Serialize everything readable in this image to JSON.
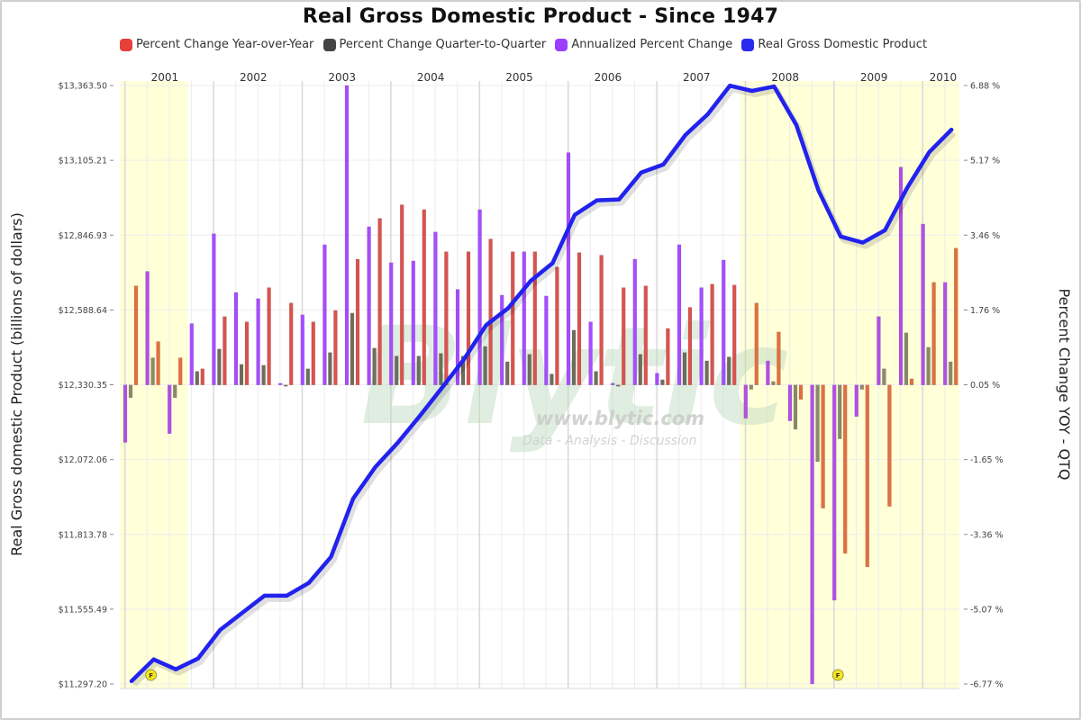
{
  "chart_data": {
    "type": "bar",
    "title": "Real Gross Domestic Product - Since 1947",
    "ylabel_left": "Real Gross domestic Product (billions of dollars)",
    "ylabel_right": "Percent Change YOY - QTQ",
    "ylim_left": [
      11297.2,
      13363.5
    ],
    "ylim_right": [
      -6.77,
      6.88
    ],
    "left_ticks": [
      "$13,363.50",
      "$13,105.21",
      "$12,846.93",
      "$12,588.64",
      "$12,330.35",
      "$12,072.06",
      "$11,813.78",
      "$11,555.49",
      "$11,297.20"
    ],
    "right_ticks": [
      "6.88 %",
      "5.17 %",
      "3.46 %",
      "1.76 %",
      "0.05 %",
      "-1.65 %",
      "-3.36 %",
      "-5.07 %",
      "-6.77 %"
    ],
    "years": [
      "2001",
      "2002",
      "2003",
      "2004",
      "2005",
      "2006",
      "2007",
      "2008",
      "2009",
      "2010"
    ],
    "recession_shading": [
      {
        "from_quarter": "2001Q1",
        "to_quarter": "2001Q3",
        "color": "#ffffd8"
      },
      {
        "from_quarter": "2008Q1",
        "to_quarter": "2010Q2",
        "color": "#ffffd8"
      }
    ],
    "markers": [
      {
        "quarter": "2001Q2",
        "glyph": "F"
      },
      {
        "quarter": "2009Q1",
        "glyph": "F"
      }
    ],
    "legend_position": "top",
    "grid": true,
    "quarters": [
      "2001Q1",
      "2001Q2",
      "2001Q3",
      "2001Q4",
      "2002Q1",
      "2002Q2",
      "2002Q3",
      "2002Q4",
      "2003Q1",
      "2003Q2",
      "2003Q3",
      "2003Q4",
      "2004Q1",
      "2004Q2",
      "2004Q3",
      "2004Q4",
      "2005Q1",
      "2005Q2",
      "2005Q3",
      "2005Q4",
      "2006Q1",
      "2006Q2",
      "2006Q3",
      "2006Q4",
      "2007Q1",
      "2007Q2",
      "2007Q3",
      "2007Q4",
      "2008Q1",
      "2008Q2",
      "2008Q3",
      "2008Q4",
      "2009Q1",
      "2009Q2",
      "2009Q3",
      "2009Q4",
      "2010Q1",
      "2010Q2"
    ],
    "series": [
      {
        "name": "Percent Change Year-over-Year",
        "axis": "right",
        "kind": "bar",
        "color": "#d9534f",
        "values": [
          2.31,
          1.04,
          0.67,
          0.42,
          1.61,
          1.49,
          2.27,
          1.92,
          1.49,
          1.75,
          2.92,
          3.85,
          4.16,
          4.05,
          3.09,
          3.09,
          3.38,
          3.09,
          3.09,
          2.74,
          3.07,
          3.01,
          2.27,
          2.31,
          1.34,
          1.82,
          2.35,
          2.33,
          1.92,
          1.26,
          -0.28,
          -2.76,
          -3.79,
          -4.1,
          -2.72,
          0.19,
          2.39,
          3.17
        ]
      },
      {
        "name": "Percent Change Quarter-to-Quarter",
        "axis": "right",
        "kind": "bar",
        "color": "#555555",
        "values": [
          -0.24,
          0.67,
          -0.24,
          0.36,
          0.87,
          0.52,
          0.5,
          0.05,
          0.42,
          0.79,
          1.69,
          0.89,
          0.71,
          0.71,
          0.77,
          0.71,
          0.93,
          0.58,
          0.75,
          0.3,
          1.3,
          0.36,
          0.05,
          0.75,
          0.17,
          0.79,
          0.6,
          0.69,
          -0.05,
          0.13,
          -0.96,
          -1.7,
          -1.18,
          -0.05,
          0.42,
          1.24,
          0.91,
          0.58
        ]
      },
      {
        "name": "Annualized Percent Change",
        "axis": "right",
        "kind": "bar",
        "color": "#a64dff",
        "values": [
          -1.26,
          2.64,
          -1.06,
          1.45,
          3.5,
          2.16,
          2.02,
          0.09,
          1.65,
          3.25,
          6.88,
          3.66,
          2.84,
          2.88,
          3.54,
          2.23,
          4.05,
          2.1,
          3.09,
          2.08,
          5.35,
          1.49,
          0.09,
          2.92,
          0.32,
          3.25,
          2.27,
          2.9,
          -0.71,
          0.6,
          -0.77,
          -6.77,
          -4.86,
          -0.67,
          1.61,
          5.02,
          3.72,
          2.39
        ]
      },
      {
        "name": "Real Gross Domestic Product",
        "axis": "left",
        "kind": "line",
        "color": "#2222ee",
        "values": [
          11307,
          11382,
          11348,
          11385,
          11484,
          11543,
          11602,
          11602,
          11646,
          11736,
          11937,
          12046,
          12129,
          12222,
          12319,
          12418,
          12536,
          12595,
          12688,
          12750,
          12917,
          12967,
          12970,
          13063,
          13091,
          13193,
          13264,
          13363,
          13345,
          13360,
          13227,
          13001,
          12842,
          12821,
          12864,
          13010,
          13134,
          13211
        ]
      }
    ]
  },
  "legend": {
    "items": [
      {
        "label": "Percent Change Year-over-Year",
        "color": "#e8403a"
      },
      {
        "label": "Percent Change Quarter-to-Quarter",
        "color": "#444444"
      },
      {
        "label": "Annualized Percent Change",
        "color": "#9b3dff"
      },
      {
        "label": "Real Gross Domestic Product",
        "color": "#2a2aee"
      }
    ]
  },
  "watermark": {
    "logo": "Blytic",
    "url": "www.blytic.com",
    "tagline": "Data - Analysis - Discussion"
  }
}
